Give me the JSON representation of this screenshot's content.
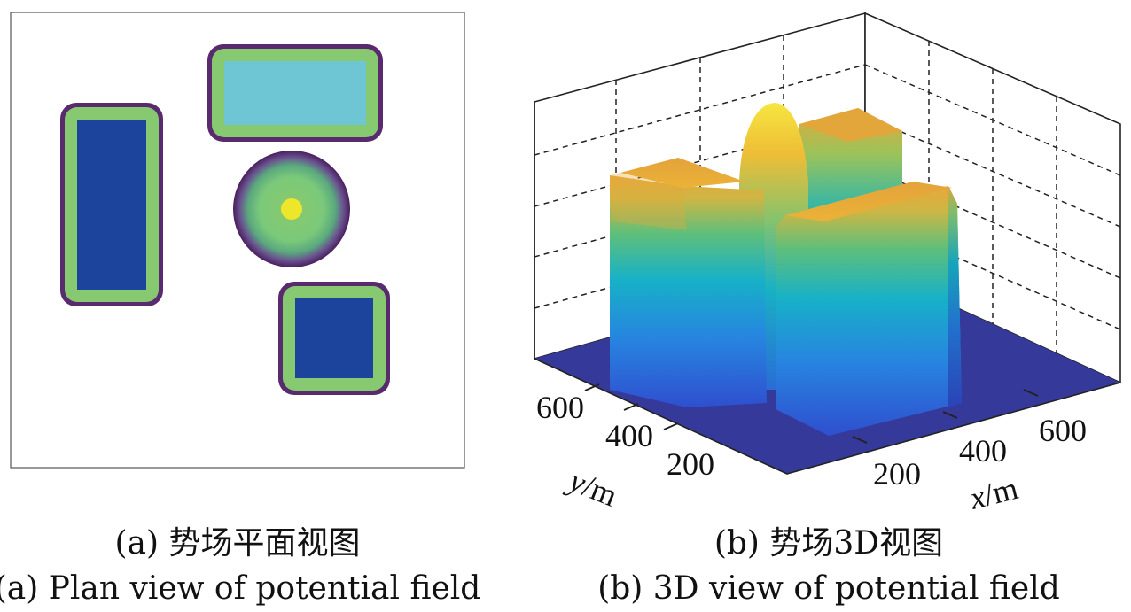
{
  "chart_data": [
    {
      "type": "heatmap",
      "caption_cn": "(a) 势场平面视图",
      "caption_en": "(a) Plan view of potential field",
      "colormap": "viridis",
      "obstacles": [
        {
          "shape": "rounded-rectangle",
          "label": "top-rectangle",
          "core_color": "#6ec6d4"
        },
        {
          "shape": "rounded-rectangle",
          "label": "left-rectangle",
          "core_color": "#1d449c"
        },
        {
          "shape": "circle",
          "label": "center-circle",
          "core_color": "#e8e62a"
        },
        {
          "shape": "rounded-rectangle",
          "label": "bottom-right-square",
          "core_color": "#1d449c"
        }
      ]
    },
    {
      "type": "surface-3d",
      "caption_cn": "(b) 势场3D视图",
      "caption_en": "(b) 3D view of potential field",
      "colormap": "parula",
      "grid": true,
      "x_axis": {
        "label_var": "x",
        "label_unit": "/m",
        "ticks": [
          200,
          400,
          600
        ]
      },
      "y_axis": {
        "label_var": "y",
        "label_unit": "/m",
        "ticks": [
          200,
          400,
          600
        ]
      },
      "colors": {
        "floor": "#35399a",
        "low": "#2b6ad8",
        "mid": "#1fb0c8",
        "high": "#e2a93a",
        "peak": "#f5e34a"
      }
    }
  ]
}
